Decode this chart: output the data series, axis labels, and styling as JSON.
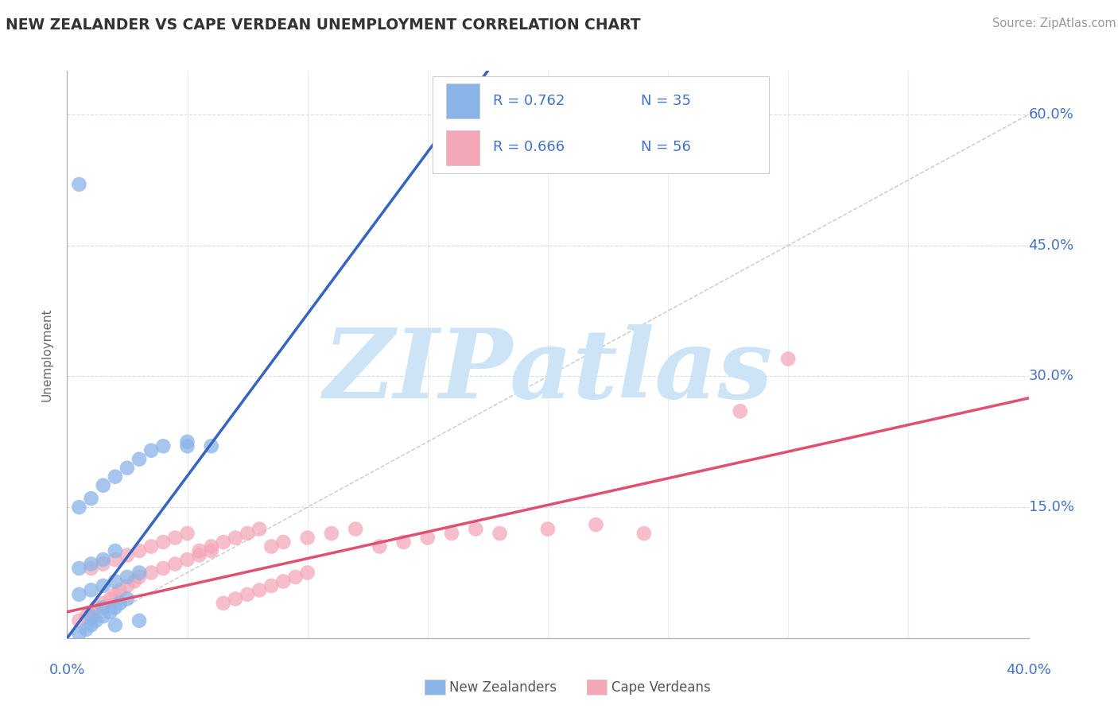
{
  "title": "NEW ZEALANDER VS CAPE VERDEAN UNEMPLOYMENT CORRELATION CHART",
  "source": "Source: ZipAtlas.com",
  "ylabel": "Unemployment",
  "ylim": [
    0.0,
    0.65
  ],
  "xlim": [
    0.0,
    0.4
  ],
  "yticks": [
    0.0,
    0.15,
    0.3,
    0.45,
    0.6
  ],
  "ytick_labels": [
    "",
    "15.0%",
    "30.0%",
    "45.0%",
    "60.0%"
  ],
  "xtick_vals": [
    0.0,
    0.05,
    0.1,
    0.15,
    0.2,
    0.25,
    0.3,
    0.35,
    0.4
  ],
  "blue_R": 0.762,
  "blue_N": 35,
  "pink_R": 0.666,
  "pink_N": 56,
  "blue_color": "#8ab4e8",
  "pink_color": "#f4a7b9",
  "blue_line_color": "#3565c0",
  "pink_line_color": "#e05070",
  "title_color": "#333333",
  "source_color": "#999999",
  "legend_color": "#4472c4",
  "watermark_color": "#cce4f5",
  "watermark_text": "ZIPatlas",
  "blue_scatter_x": [
    0.005,
    0.008,
    0.01,
    0.012,
    0.015,
    0.018,
    0.02,
    0.022,
    0.025,
    0.005,
    0.01,
    0.015,
    0.02,
    0.025,
    0.03,
    0.005,
    0.01,
    0.015,
    0.02,
    0.005,
    0.01,
    0.015,
    0.02,
    0.025,
    0.03,
    0.035,
    0.04,
    0.05,
    0.06,
    0.005,
    0.01,
    0.015,
    0.02,
    0.03,
    0.05
  ],
  "blue_scatter_y": [
    0.005,
    0.01,
    0.015,
    0.02,
    0.025,
    0.03,
    0.035,
    0.04,
    0.045,
    0.05,
    0.055,
    0.06,
    0.065,
    0.07,
    0.075,
    0.08,
    0.085,
    0.09,
    0.1,
    0.15,
    0.16,
    0.175,
    0.185,
    0.195,
    0.205,
    0.215,
    0.22,
    0.225,
    0.22,
    0.52,
    0.025,
    0.035,
    0.015,
    0.02,
    0.22
  ],
  "pink_scatter_x": [
    0.005,
    0.008,
    0.01,
    0.012,
    0.015,
    0.018,
    0.02,
    0.022,
    0.025,
    0.028,
    0.03,
    0.035,
    0.04,
    0.045,
    0.05,
    0.055,
    0.06,
    0.065,
    0.07,
    0.075,
    0.08,
    0.085,
    0.09,
    0.095,
    0.1,
    0.01,
    0.015,
    0.02,
    0.025,
    0.03,
    0.035,
    0.04,
    0.045,
    0.05,
    0.055,
    0.06,
    0.065,
    0.07,
    0.075,
    0.08,
    0.085,
    0.09,
    0.1,
    0.11,
    0.12,
    0.13,
    0.14,
    0.15,
    0.16,
    0.17,
    0.18,
    0.2,
    0.22,
    0.24,
    0.28,
    0.3
  ],
  "pink_scatter_y": [
    0.02,
    0.025,
    0.03,
    0.035,
    0.04,
    0.045,
    0.05,
    0.055,
    0.06,
    0.065,
    0.07,
    0.075,
    0.08,
    0.085,
    0.09,
    0.095,
    0.1,
    0.04,
    0.045,
    0.05,
    0.055,
    0.06,
    0.065,
    0.07,
    0.075,
    0.08,
    0.085,
    0.09,
    0.095,
    0.1,
    0.105,
    0.11,
    0.115,
    0.12,
    0.1,
    0.105,
    0.11,
    0.115,
    0.12,
    0.125,
    0.105,
    0.11,
    0.115,
    0.12,
    0.125,
    0.105,
    0.11,
    0.115,
    0.12,
    0.125,
    0.12,
    0.125,
    0.13,
    0.12,
    0.26,
    0.32
  ],
  "blue_line_x": [
    0.0,
    0.175
  ],
  "blue_line_y": [
    0.0,
    0.65
  ],
  "pink_line_x": [
    0.0,
    0.4
  ],
  "pink_line_y": [
    0.03,
    0.275
  ],
  "diag_line_x": [
    0.0,
    0.4
  ],
  "diag_line_y": [
    0.0,
    0.6
  ],
  "background_color": "#ffffff",
  "grid_color": "#d4dce8"
}
